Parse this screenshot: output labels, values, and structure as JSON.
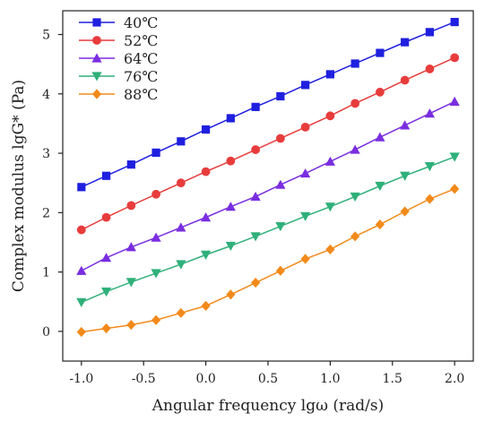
{
  "chart_data": {
    "type": "line",
    "title": "",
    "xlabel": "Angular frequency lgω (rad/s)",
    "ylabel": "Complex modulus lgG* (Pa)",
    "xlim": [
      -1.15,
      2.15
    ],
    "ylim": [
      -0.5,
      5.4
    ],
    "x_ticks": [
      "-1.0",
      "-0.5",
      "0.0",
      "0.5",
      "1.0",
      "1.5",
      "2.0"
    ],
    "x_tick_values": [
      -1.0,
      -0.5,
      0.0,
      0.5,
      1.0,
      1.5,
      2.0
    ],
    "y_ticks": [
      "0",
      "1",
      "2",
      "3",
      "4",
      "5"
    ],
    "y_tick_values": [
      0,
      1,
      2,
      3,
      4,
      5
    ],
    "grid": false,
    "legend_position": "top-left",
    "x": [
      -1.0,
      -0.8,
      -0.6,
      -0.4,
      -0.2,
      0.0,
      0.2,
      0.4,
      0.6,
      0.8,
      1.0,
      1.2,
      1.4,
      1.6,
      1.8,
      2.0
    ],
    "series": [
      {
        "name": "40℃",
        "color": "#1f1fe0",
        "marker": "square",
        "values": [
          2.43,
          2.62,
          2.81,
          3.01,
          3.2,
          3.4,
          3.59,
          3.78,
          3.96,
          4.15,
          4.33,
          4.51,
          4.69,
          4.87,
          5.04,
          5.21
        ]
      },
      {
        "name": "52℃",
        "color": "#e83c3c",
        "marker": "circle",
        "values": [
          1.71,
          1.92,
          2.12,
          2.31,
          2.5,
          2.69,
          2.87,
          3.06,
          3.25,
          3.44,
          3.63,
          3.84,
          4.03,
          4.23,
          4.42,
          4.61
        ]
      },
      {
        "name": "64℃",
        "color": "#7a2ee0",
        "marker": "triangle-up",
        "values": [
          1.02,
          1.24,
          1.42,
          1.58,
          1.75,
          1.92,
          2.1,
          2.27,
          2.47,
          2.66,
          2.86,
          3.06,
          3.27,
          3.47,
          3.67,
          3.87
        ]
      },
      {
        "name": "76℃",
        "color": "#2fb07a",
        "marker": "triangle-down",
        "values": [
          0.49,
          0.67,
          0.83,
          0.98,
          1.13,
          1.29,
          1.44,
          1.6,
          1.77,
          1.94,
          2.1,
          2.27,
          2.45,
          2.62,
          2.78,
          2.94
        ]
      },
      {
        "name": "88℃",
        "color": "#f28a1a",
        "marker": "diamond",
        "values": [
          -0.01,
          0.05,
          0.11,
          0.19,
          0.31,
          0.43,
          0.62,
          0.82,
          1.02,
          1.22,
          1.38,
          1.6,
          1.8,
          2.02,
          2.23,
          2.4
        ]
      }
    ]
  }
}
